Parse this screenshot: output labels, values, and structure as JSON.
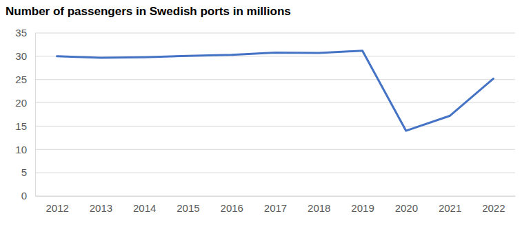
{
  "chart_data": {
    "type": "line",
    "title": "Number of passengers in Swedish ports in millions",
    "categories": [
      "2012",
      "2013",
      "2014",
      "2015",
      "2016",
      "2017",
      "2018",
      "2019",
      "2020",
      "2021",
      "2022"
    ],
    "values": [
      30.0,
      29.7,
      29.8,
      30.1,
      30.3,
      30.8,
      30.7,
      31.2,
      14.0,
      17.2,
      25.2
    ],
    "color": "#4472c4",
    "ylim": [
      0,
      35
    ],
    "yticks": [
      0,
      5,
      10,
      15,
      20,
      25,
      30,
      35
    ],
    "grid": true
  }
}
